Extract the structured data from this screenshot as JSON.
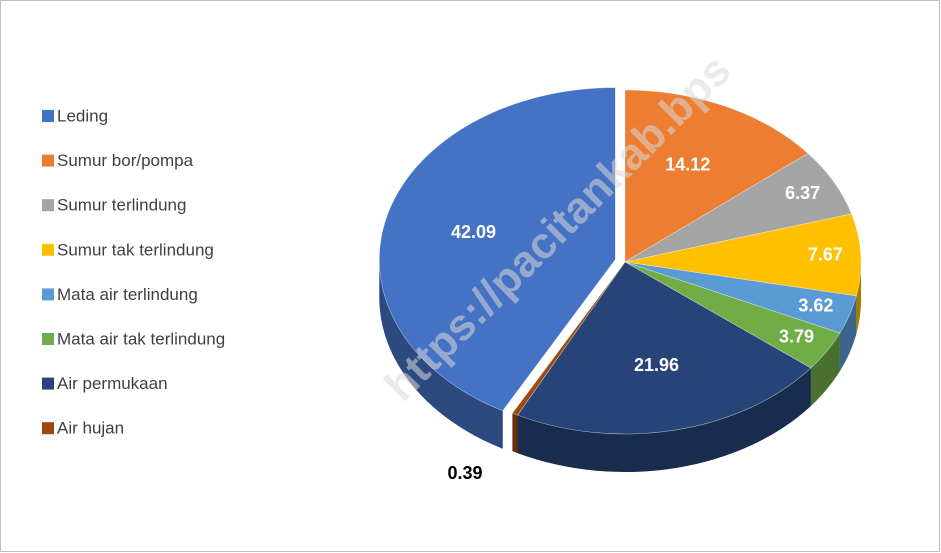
{
  "chart_data": {
    "type": "pie3d",
    "watermark": "https://pacitankab.bps",
    "categories": [
      "Leding",
      "Sumur bor/pompa",
      "Sumur terlindung",
      "Sumur tak terlindung",
      "Mata air terlindung",
      "Mata air tak terlindung",
      "Air permukaan",
      "Air hujan"
    ],
    "values": [
      42.09,
      14.12,
      6.37,
      7.67,
      3.62,
      3.79,
      21.96,
      0.39
    ],
    "colors": [
      "#4472c4",
      "#ed7d31",
      "#a5a5a5",
      "#ffc000",
      "#5b9bd5",
      "#70ad47",
      "#264478",
      "#9e480e"
    ],
    "legend": "left"
  }
}
